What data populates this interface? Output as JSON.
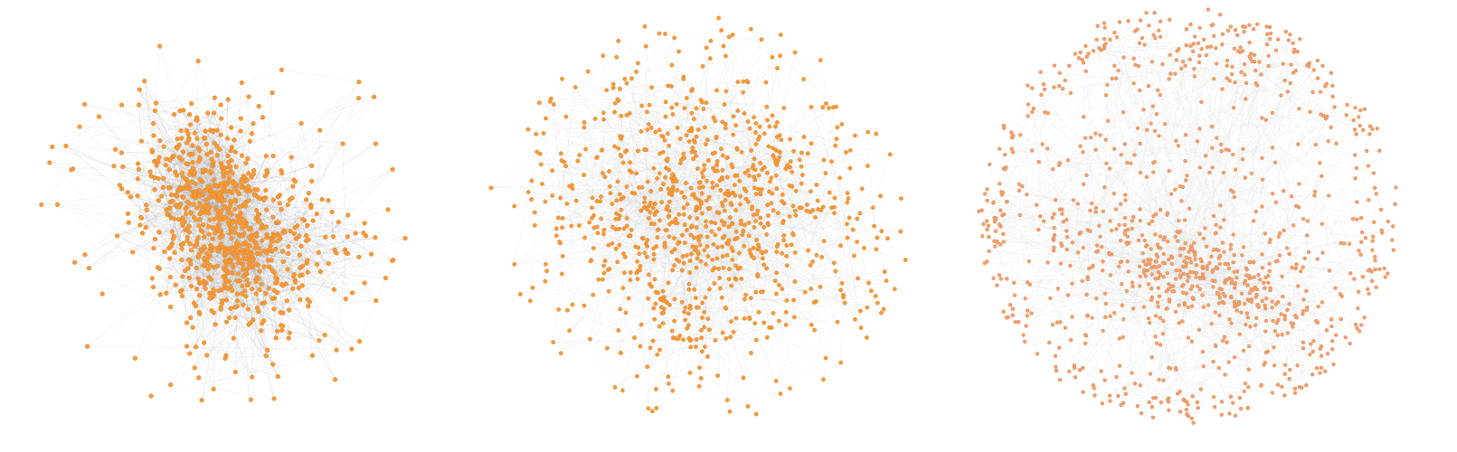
{
  "figure": {
    "panels": [
      {
        "id": "panel-a",
        "description_kind": "dense-network",
        "node_color": "#f59a3a",
        "node_stroke": "#e07f1d",
        "edge_color": "#8c8c8c",
        "edge_opacity": 0.14,
        "node_count": 900,
        "edge_count": 2600,
        "seed": 11
      },
      {
        "id": "panel-b",
        "description_kind": "moderate-network",
        "node_color": "#f59a3a",
        "node_stroke": "#e07f1d",
        "edge_color": "#9a9a9a",
        "edge_opacity": 0.1,
        "node_count": 950,
        "edge_count": 2200,
        "seed": 23
      },
      {
        "id": "panel-c",
        "description_kind": "sparse-network",
        "node_color": "#f2a06a",
        "node_stroke": "#e0895a",
        "edge_color": "#b8b8b8",
        "edge_opacity": 0.12,
        "node_count": 1100,
        "edge_count": 1700,
        "seed": 37
      }
    ]
  }
}
